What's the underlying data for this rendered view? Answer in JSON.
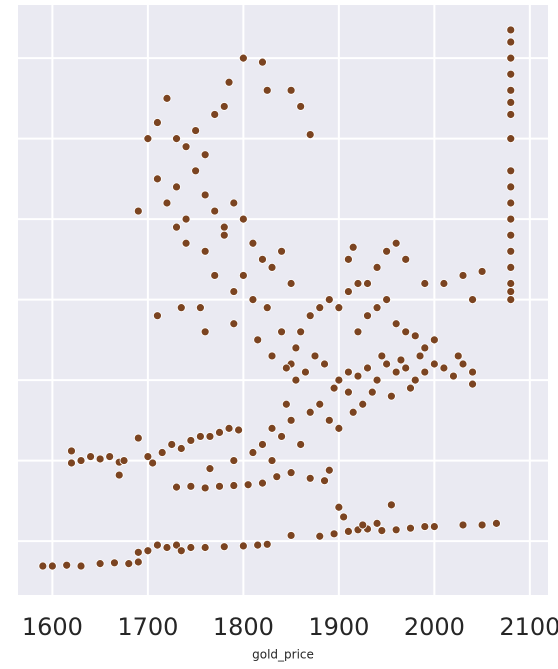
{
  "chart_data": {
    "type": "scatter",
    "xlabel": "gold_price",
    "color": "#7b4421",
    "grid": true,
    "xlim": [
      1564,
      2119
    ],
    "xticks": [
      1600,
      1700,
      1800,
      1900,
      2000,
      2100
    ],
    "ylim": [
      0.33,
      7.66
    ],
    "yticks": [
      1,
      2,
      3,
      4,
      5,
      6,
      7
    ],
    "x": [
      1590,
      1600,
      1615,
      1630,
      1650,
      1665,
      1680,
      1690,
      1700,
      1710,
      1720,
      1730,
      1745,
      1760,
      1780,
      1800,
      1815,
      1825,
      1690,
      1735,
      1850,
      1880,
      1895,
      1910,
      1920,
      1930,
      1945,
      1960,
      1975,
      1990,
      2000,
      2030,
      2050,
      2065,
      1905,
      1925,
      1940,
      1900,
      1955,
      1620,
      1630,
      1640,
      1650,
      1660,
      1670,
      1675,
      1670,
      1700,
      1705,
      1715,
      1725,
      1735,
      1745,
      1755,
      1765,
      1775,
      1785,
      1795,
      1690,
      1620,
      1730,
      1745,
      1760,
      1775,
      1790,
      1805,
      1820,
      1835,
      1850,
      1870,
      1885,
      1765,
      1790,
      1810,
      1820,
      1830,
      1840,
      1850,
      1860,
      1870,
      1880,
      1890,
      1895,
      1830,
      1845,
      1855,
      1865,
      1875,
      1885,
      1855,
      1860,
      1870,
      1880,
      1890,
      1900,
      1910,
      1920,
      1840,
      1825,
      1850,
      1900,
      1915,
      1890,
      1900,
      1910,
      1920,
      1930,
      1940,
      1950,
      1960,
      1970,
      1980,
      1990,
      2000,
      2010,
      2020,
      2030,
      2040,
      2040,
      1935,
      1955,
      1925,
      1945,
      1965,
      1985,
      1910,
      2025,
      1975,
      1920,
      1930,
      1940,
      1950,
      1960,
      1970,
      1980,
      1990,
      2000,
      1930,
      1940,
      1950,
      1960,
      1970,
      1990,
      2010,
      2030,
      2050,
      2040,
      1910,
      1915,
      1710,
      1700,
      1720,
      1730,
      1740,
      1750,
      1760,
      1770,
      1780,
      1785,
      1800,
      1820,
      1825,
      1850,
      1860,
      1870,
      1690,
      1710,
      1720,
      1730,
      1740,
      1750,
      1760,
      1770,
      1780,
      1790,
      1800,
      1810,
      1820,
      1830,
      1840,
      1850,
      1760,
      1770,
      1730,
      1740,
      1800,
      1810,
      1780,
      1790,
      1755,
      1710,
      1735,
      1760,
      1790,
      1815,
      1830,
      1845,
      2080,
      2080,
      2080,
      2080,
      2080,
      2080,
      2080,
      2080,
      2080,
      2080,
      2080,
      2080,
      2080,
      2080,
      2080,
      2080,
      2080,
      2080
    ],
    "values": [
      0.69,
      0.69,
      0.7,
      0.69,
      0.72,
      0.73,
      0.72,
      0.74,
      0.88,
      0.95,
      0.92,
      0.95,
      0.92,
      0.92,
      0.93,
      0.94,
      0.95,
      0.96,
      0.86,
      0.88,
      1.07,
      1.06,
      1.09,
      1.12,
      1.14,
      1.15,
      1.13,
      1.14,
      1.16,
      1.18,
      1.18,
      1.2,
      1.2,
      1.22,
      1.3,
      1.2,
      1.22,
      1.42,
      1.45,
      1.97,
      2.0,
      2.05,
      2.02,
      2.05,
      1.98,
      2.0,
      1.82,
      2.05,
      1.97,
      2.1,
      2.2,
      2.15,
      2.25,
      2.3,
      2.3,
      2.35,
      2.4,
      2.38,
      2.28,
      2.12,
      1.67,
      1.68,
      1.66,
      1.68,
      1.69,
      1.7,
      1.72,
      1.8,
      1.85,
      1.78,
      1.75,
      1.9,
      2.0,
      2.1,
      2.2,
      2.4,
      2.3,
      2.5,
      2.2,
      2.6,
      2.7,
      2.5,
      2.9,
      2.0,
      2.7,
      3.0,
      3.1,
      3.3,
      3.2,
      3.4,
      3.6,
      3.8,
      3.9,
      4.0,
      3.9,
      4.1,
      4.2,
      3.6,
      3.9,
      3.2,
      2.4,
      2.6,
      1.88,
      3.0,
      3.1,
      3.05,
      3.15,
      3.0,
      3.2,
      3.1,
      3.15,
      3.0,
      3.1,
      3.2,
      3.15,
      3.05,
      3.2,
      3.1,
      2.95,
      2.85,
      2.8,
      2.7,
      3.3,
      3.25,
      3.3,
      2.85,
      3.3,
      2.9,
      3.6,
      3.8,
      3.9,
      4.0,
      3.7,
      3.6,
      3.55,
      3.4,
      3.5,
      4.2,
      4.4,
      4.6,
      4.7,
      4.5,
      4.2,
      4.2,
      4.3,
      4.35,
      4.0,
      4.5,
      4.65,
      6.2,
      6.0,
      6.5,
      6.0,
      5.9,
      6.1,
      5.8,
      6.3,
      6.4,
      6.7,
      7.0,
      6.95,
      6.6,
      6.6,
      6.4,
      6.05,
      5.1,
      5.5,
      5.2,
      5.4,
      5.0,
      5.6,
      5.3,
      5.1,
      4.9,
      5.2,
      5.0,
      4.7,
      4.5,
      4.4,
      4.6,
      4.2,
      4.6,
      4.3,
      4.9,
      4.7,
      4.3,
      4.0,
      4.8,
      4.1,
      3.9,
      3.8,
      3.9,
      3.6,
      3.7,
      3.5,
      3.3,
      3.15,
      4.0,
      4.2,
      4.4,
      4.6,
      4.8,
      5.0,
      5.2,
      5.6,
      6.0,
      6.3,
      6.6,
      6.8,
      7.0,
      7.2,
      7.35,
      5.4,
      6.45,
      4.1
    ]
  }
}
